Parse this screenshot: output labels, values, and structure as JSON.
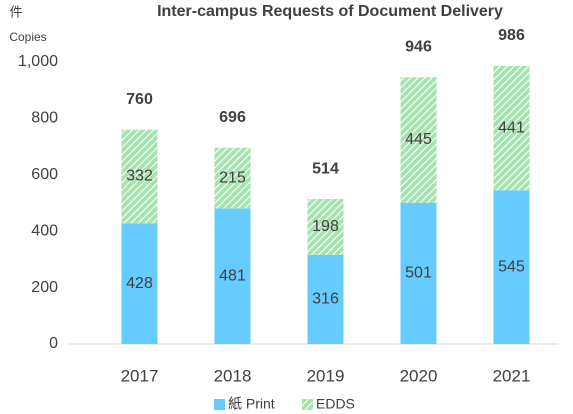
{
  "chart_data": {
    "type": "stacked_bar",
    "title": "Inter-campus Requests of Document Delivery",
    "y_label_top": "件",
    "y_label": "Copies",
    "categories": [
      "2017",
      "2018",
      "2019",
      "2020",
      "2021"
    ],
    "series": [
      {
        "name": "紙 Print",
        "color": "#66ccff",
        "values": [
          428,
          481,
          316,
          501,
          545
        ]
      },
      {
        "name": "EDDS",
        "color": "#a6e3b0",
        "values": [
          332,
          215,
          198,
          445,
          441
        ]
      }
    ],
    "totals": [
      760,
      696,
      514,
      946,
      986
    ],
    "ylim": [
      0,
      1000
    ],
    "yticks": [
      0,
      200,
      400,
      600,
      800,
      {
        "value": 1000,
        "label": "1,000"
      }
    ],
    "grid": false,
    "legend": "bottom"
  }
}
